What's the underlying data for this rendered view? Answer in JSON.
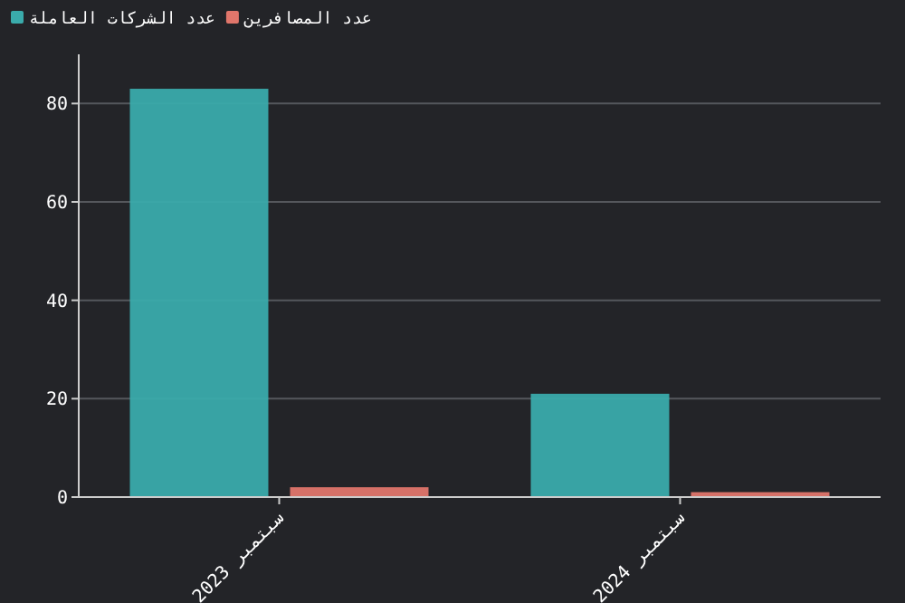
{
  "chart_data": {
    "type": "bar",
    "categories": [
      "سبتمبر 2023",
      "سبتمبر 2024"
    ],
    "series": [
      {
        "name": "عدد الشركات العاملة",
        "color": "#3aabab",
        "values": [
          83,
          21
        ]
      },
      {
        "name": "عدد المصافرين",
        "color": "#e0766b",
        "values": [
          2,
          1
        ]
      }
    ],
    "ylim": [
      0,
      90
    ],
    "yticks": [
      0,
      20,
      40,
      60,
      80
    ],
    "grid": "y",
    "legend": "top left"
  }
}
